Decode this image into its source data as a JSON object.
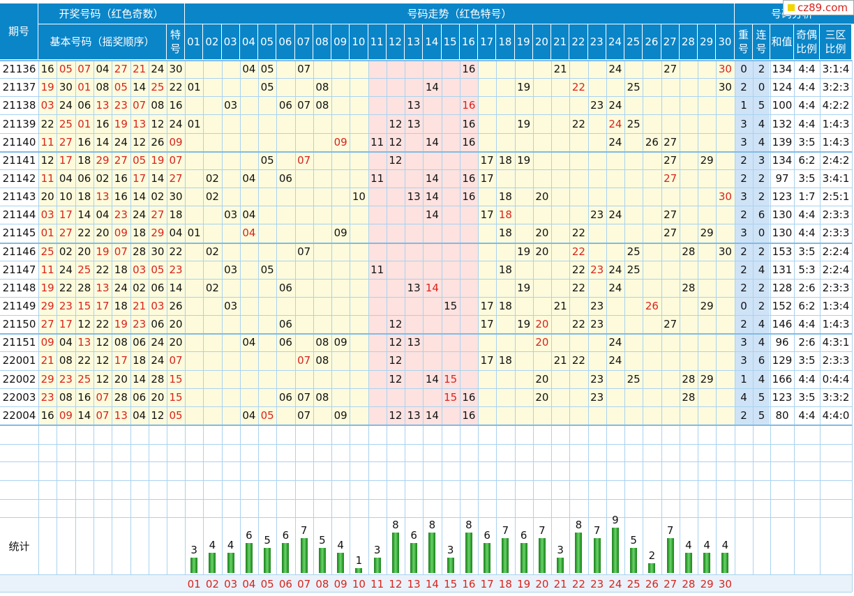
{
  "header": {
    "period_label": "期号",
    "draw_group": "开奖号码（红色奇数）",
    "basic_numbers": "基本号码（摇奖顺序）",
    "special_label": "特号",
    "trend_group": "号码走势（红色特号）",
    "analysis_group": "号码分析",
    "repeat_label": "重号",
    "consecutive_label": "连号",
    "sum_label": "和值",
    "odd_even_label": "奇偶比例",
    "zone_label": "三区比例"
  },
  "logo_text": "cz89.com",
  "numbers": [
    "01",
    "02",
    "03",
    "04",
    "05",
    "06",
    "07",
    "08",
    "09",
    "10",
    "11",
    "12",
    "13",
    "14",
    "15",
    "16",
    "17",
    "18",
    "19",
    "20",
    "21",
    "22",
    "23",
    "24",
    "25",
    "26",
    "27",
    "28",
    "29",
    "30"
  ],
  "rows": [
    {
      "period": "21136",
      "basic": [
        "16",
        "05",
        "07",
        "04",
        "27",
        "21",
        "24"
      ],
      "special": "30",
      "repeat": "0",
      "consec": "2",
      "sum": "134",
      "oe": "4:4",
      "zone": "3:1:4"
    },
    {
      "period": "21137",
      "basic": [
        "19",
        "30",
        "01",
        "08",
        "05",
        "14",
        "25"
      ],
      "special": "22",
      "repeat": "2",
      "consec": "0",
      "sum": "124",
      "oe": "4:4",
      "zone": "3:2:3"
    },
    {
      "period": "21138",
      "basic": [
        "03",
        "24",
        "06",
        "13",
        "23",
        "07",
        "08"
      ],
      "special": "16",
      "repeat": "1",
      "consec": "5",
      "sum": "100",
      "oe": "4:4",
      "zone": "4:2:2"
    },
    {
      "period": "21139",
      "basic": [
        "22",
        "25",
        "01",
        "16",
        "19",
        "13",
        "12"
      ],
      "special": "24",
      "repeat": "3",
      "consec": "4",
      "sum": "132",
      "oe": "4:4",
      "zone": "1:4:3"
    },
    {
      "period": "21140",
      "basic": [
        "11",
        "27",
        "16",
        "14",
        "24",
        "12",
        "26"
      ],
      "special": "09",
      "repeat": "3",
      "consec": "4",
      "sum": "139",
      "oe": "3:5",
      "zone": "1:4:3"
    },
    {
      "period": "21141",
      "basic": [
        "12",
        "17",
        "18",
        "29",
        "27",
        "05",
        "19"
      ],
      "special": "07",
      "repeat": "2",
      "consec": "3",
      "sum": "134",
      "oe": "6:2",
      "zone": "2:4:2"
    },
    {
      "period": "21142",
      "basic": [
        "11",
        "04",
        "06",
        "02",
        "16",
        "17",
        "14"
      ],
      "special": "27",
      "repeat": "2",
      "consec": "2",
      "sum": "97",
      "oe": "3:5",
      "zone": "3:4:1"
    },
    {
      "period": "21143",
      "basic": [
        "20",
        "10",
        "18",
        "13",
        "16",
        "14",
        "02"
      ],
      "special": "30",
      "repeat": "3",
      "consec": "2",
      "sum": "123",
      "oe": "1:7",
      "zone": "2:5:1"
    },
    {
      "period": "21144",
      "basic": [
        "03",
        "17",
        "14",
        "04",
        "23",
        "24",
        "27"
      ],
      "special": "18",
      "repeat": "2",
      "consec": "6",
      "sum": "130",
      "oe": "4:4",
      "zone": "2:3:3"
    },
    {
      "period": "21145",
      "basic": [
        "01",
        "27",
        "22",
        "20",
        "09",
        "18",
        "29"
      ],
      "special": "04",
      "repeat": "3",
      "consec": "0",
      "sum": "130",
      "oe": "4:4",
      "zone": "2:3:3"
    },
    {
      "period": "21146",
      "basic": [
        "25",
        "02",
        "20",
        "19",
        "07",
        "28",
        "30"
      ],
      "special": "22",
      "repeat": "2",
      "consec": "2",
      "sum": "153",
      "oe": "3:5",
      "zone": "2:2:4"
    },
    {
      "period": "21147",
      "basic": [
        "11",
        "24",
        "25",
        "22",
        "18",
        "03",
        "05"
      ],
      "special": "23",
      "repeat": "2",
      "consec": "4",
      "sum": "131",
      "oe": "5:3",
      "zone": "2:2:4"
    },
    {
      "period": "21148",
      "basic": [
        "19",
        "22",
        "28",
        "13",
        "24",
        "02",
        "06"
      ],
      "special": "14",
      "repeat": "2",
      "consec": "2",
      "sum": "128",
      "oe": "2:6",
      "zone": "2:3:3"
    },
    {
      "period": "21149",
      "basic": [
        "29",
        "23",
        "15",
        "17",
        "18",
        "21",
        "03"
      ],
      "special": "26",
      "repeat": "0",
      "consec": "2",
      "sum": "152",
      "oe": "6:2",
      "zone": "1:3:4"
    },
    {
      "period": "21150",
      "basic": [
        "27",
        "17",
        "12",
        "22",
        "19",
        "23",
        "06"
      ],
      "special": "20",
      "repeat": "2",
      "consec": "4",
      "sum": "146",
      "oe": "4:4",
      "zone": "1:4:3"
    },
    {
      "period": "21151",
      "basic": [
        "09",
        "04",
        "13",
        "12",
        "08",
        "06",
        "24"
      ],
      "special": "20",
      "repeat": "3",
      "consec": "4",
      "sum": "96",
      "oe": "2:6",
      "zone": "4:3:1"
    },
    {
      "period": "22001",
      "basic": [
        "21",
        "08",
        "22",
        "12",
        "17",
        "18",
        "24"
      ],
      "special": "07",
      "repeat": "3",
      "consec": "6",
      "sum": "129",
      "oe": "3:5",
      "zone": "2:3:3"
    },
    {
      "period": "22002",
      "basic": [
        "29",
        "23",
        "25",
        "12",
        "20",
        "14",
        "28"
      ],
      "special": "15",
      "repeat": "1",
      "consec": "4",
      "sum": "166",
      "oe": "4:4",
      "zone": "0:4:4"
    },
    {
      "period": "22003",
      "basic": [
        "23",
        "08",
        "16",
        "07",
        "28",
        "06",
        "20"
      ],
      "special": "15",
      "repeat": "4",
      "consec": "5",
      "sum": "123",
      "oe": "3:5",
      "zone": "3:3:2"
    },
    {
      "period": "22004",
      "basic": [
        "16",
        "09",
        "14",
        "07",
        "13",
        "04",
        "12"
      ],
      "special": "05",
      "repeat": "2",
      "consec": "5",
      "sum": "80",
      "oe": "4:4",
      "zone": "4:4:0"
    }
  ],
  "stats_label": "统计",
  "stat_counts": [
    "3",
    "4",
    "4",
    "6",
    "5",
    "6",
    "7",
    "5",
    "4",
    "1",
    "3",
    "8",
    "6",
    "8",
    "3",
    "8",
    "6",
    "7",
    "6",
    "7",
    "3",
    "8",
    "7",
    "9",
    "5",
    "2",
    "7",
    "4",
    "4",
    "4"
  ],
  "colors": {
    "header": "#0a85c8",
    "cream": "#fdfbdc",
    "pink": "#fde2e0",
    "lightblue": "#cfe3f7",
    "red": "#d8231c",
    "bar": "#2fa52f"
  }
}
